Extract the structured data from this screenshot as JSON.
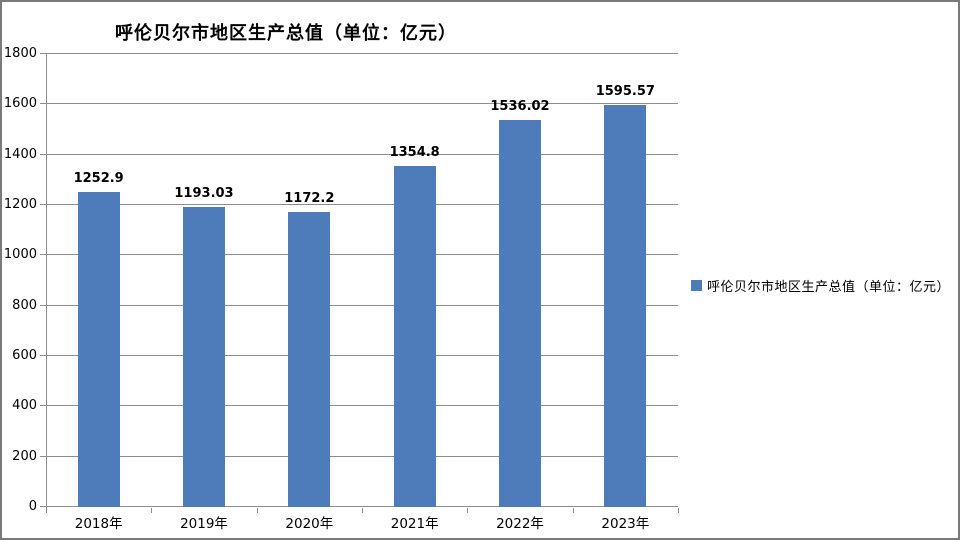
{
  "chart_data": {
    "type": "bar",
    "title": "呼伦贝尔市地区生产总值（单位：亿元）",
    "categories": [
      "2018年",
      "2019年",
      "2020年",
      "2021年",
      "2022年",
      "2023年"
    ],
    "values": [
      1252.9,
      1193.03,
      1172.2,
      1354.8,
      1536.02,
      1595.57
    ],
    "value_labels": [
      "1252.9",
      "1193.03",
      "1172.2",
      "1354.8",
      "1536.02",
      "1595.57"
    ],
    "series_name": "呼伦贝尔市地区生产总值（单位：亿元）",
    "legend": [
      "呼伦贝尔市地区生产总值（单位：亿元）"
    ],
    "legend_position": "right",
    "xlabel": "",
    "ylabel": "",
    "ylim": [
      0,
      1800
    ],
    "ytick_interval": 200,
    "y_ticks": [
      0,
      200,
      400,
      600,
      800,
      1000,
      1200,
      1400,
      1600,
      1800
    ],
    "grid": "horizontal"
  },
  "colors": {
    "bar": "#4E7BBA",
    "gridline": "#8C8C8C",
    "axis": "#8C8C8C",
    "frame_border": "#7A7A7A",
    "text": "#000000",
    "background": "#FFFFFF"
  }
}
